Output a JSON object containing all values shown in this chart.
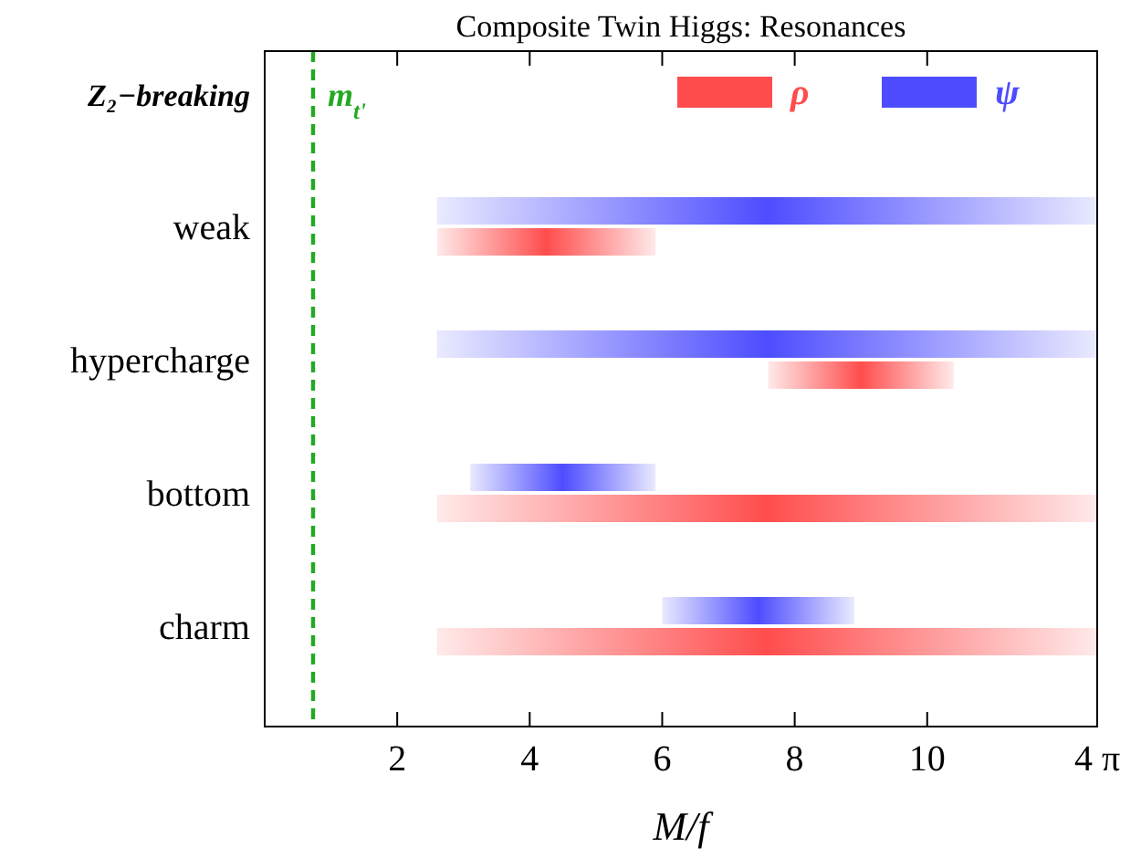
{
  "chart_data": {
    "type": "bar",
    "orientation": "horizontal",
    "title": "Composite Twin Higgs: Resonances",
    "xlabel": "M/f",
    "categories": [
      "weak",
      "hypercharge",
      "bottom",
      "charm"
    ],
    "series": [
      {
        "name": "ψ",
        "color": "#4d4dff",
        "base": [
          2.6,
          2.6,
          3.1,
          6.0
        ],
        "values": [
          9.97,
          9.97,
          2.8,
          2.9
        ]
      },
      {
        "name": "ρ",
        "color": "#ff4d4d",
        "base": [
          2.6,
          7.6,
          2.6,
          2.6
        ],
        "values": [
          3.3,
          2.8,
          9.97,
          9.97
        ]
      }
    ],
    "xlim": [
      0,
      12.566
    ],
    "xticks": [
      2,
      4,
      6,
      8,
      10,
      {
        "value": 12.566,
        "label": "4 π"
      }
    ],
    "ref_lines": [
      {
        "axis": "x",
        "value": 0.73,
        "label": "m$_{t'}$",
        "color": "#22aa22",
        "line_style": "dashed"
      }
    ],
    "annotations": [
      "Z₂−breaking"
    ],
    "legend": "top right",
    "grid": false
  }
}
